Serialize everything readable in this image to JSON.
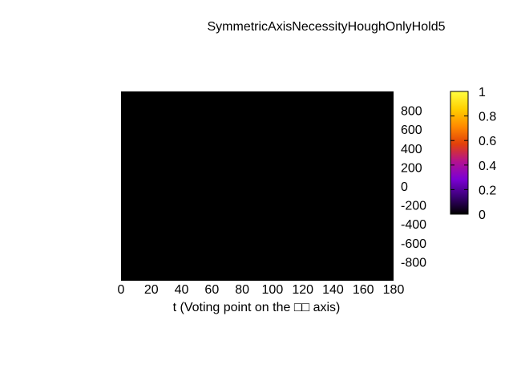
{
  "chart_data": {
    "type": "heatmap",
    "title": "SymmetricAxisNecessityHoughOnlyHold5",
    "xlabel": "t (Voting point on the □□ axis)",
    "ylabel": "",
    "xlim": [
      0,
      180
    ],
    "ylim": [
      -1000,
      1000
    ],
    "x_ticks": [
      "0",
      "20",
      "40",
      "60",
      "80",
      "100",
      "120",
      "140",
      "160",
      "180"
    ],
    "y_ticks": [
      "800",
      "600",
      "400",
      "200",
      "0",
      "-200",
      "-400",
      "-600",
      "-800"
    ],
    "values_uniform": 0,
    "fill_color": "#000000",
    "colorbar": {
      "range": [
        0,
        1
      ],
      "ticks": [
        "0",
        "0.2",
        "0.4",
        "0.6",
        "0.8",
        "1"
      ],
      "palette": [
        "#000000",
        "#3a0075",
        "#7c00d4",
        "#b3128f",
        "#e2400a",
        "#ff8a00",
        "#ffd000",
        "#ffff40"
      ]
    }
  }
}
